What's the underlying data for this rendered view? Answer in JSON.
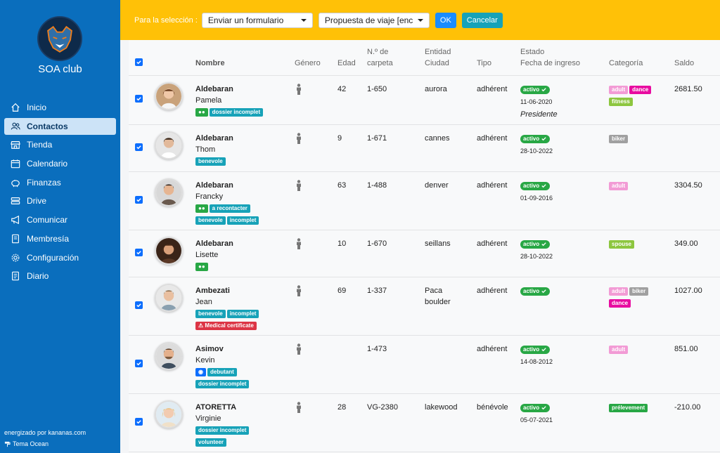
{
  "app": {
    "club_name": "SOA club",
    "footer_powered": "energizado por kananas.com",
    "footer_theme": "Tema Ocean"
  },
  "sidebar": {
    "items": [
      {
        "label": "Inicio",
        "icon": "home-icon"
      },
      {
        "label": "Contactos",
        "icon": "users-icon"
      },
      {
        "label": "Tienda",
        "icon": "store-icon"
      },
      {
        "label": "Calendario",
        "icon": "calendar-icon"
      },
      {
        "label": "Finanzas",
        "icon": "piggy-bank-icon"
      },
      {
        "label": "Drive",
        "icon": "drive-icon"
      },
      {
        "label": "Comunicar",
        "icon": "megaphone-icon"
      },
      {
        "label": "Membresía",
        "icon": "membership-icon"
      },
      {
        "label": "Configuración",
        "icon": "gear-icon"
      },
      {
        "label": "Diario",
        "icon": "journal-icon"
      }
    ]
  },
  "toolbar": {
    "selection_label": "Para la selección :",
    "action_value": "Enviar un formulario",
    "form_value": "Propuesta de viaje [encu",
    "ok_label": "OK",
    "cancel_label": "Cancelar"
  },
  "table": {
    "headers": {
      "name": "Nombre",
      "gender": "Género",
      "age": "Edad",
      "folder_1": "N.º de",
      "folder_2": "carpeta",
      "entity": "Entidad",
      "city": "Ciudad",
      "type": "Tipo",
      "status": "Estado",
      "join_date": "Fecha de ingreso",
      "category": "Categoría",
      "balance": "Saldo"
    },
    "rows": [
      {
        "last": "Aldebaran",
        "first": "Pamela",
        "age": "42",
        "folder": "1-650",
        "city": "aurora",
        "city2": "",
        "type": "adhérent",
        "status": "activo",
        "date": "11-06-2020",
        "role": "Presidente",
        "balance": "2681.50"
      },
      {
        "last": "Aldebaran",
        "first": "Thom",
        "age": "9",
        "folder": "1-671",
        "city": "cannes",
        "city2": "",
        "type": "adhérent",
        "status": "activo",
        "date": "28-10-2022",
        "role": "",
        "balance": ""
      },
      {
        "last": "Aldebaran",
        "first": "Francky",
        "age": "63",
        "folder": "1-488",
        "city": "denver",
        "city2": "",
        "type": "adhérent",
        "status": "activo",
        "date": "01-09-2016",
        "role": "",
        "balance": "3304.50"
      },
      {
        "last": "Aldebaran",
        "first": "Lisette",
        "age": "10",
        "folder": "1-670",
        "city": "seillans",
        "city2": "",
        "type": "adhérent",
        "status": "activo",
        "date": "28-10-2022",
        "role": "",
        "balance": "349.00"
      },
      {
        "last": "Ambezati",
        "first": "Jean",
        "age": "69",
        "folder": "1-337",
        "city": "Paca",
        "city2": "boulder",
        "type": "adhérent",
        "status": "activo",
        "date": "",
        "role": "",
        "balance": "1027.00"
      },
      {
        "last": "Asimov",
        "first": "Kevin",
        "age": "",
        "folder": "1-473",
        "city": "",
        "city2": "",
        "type": "adhérent",
        "status": "activo",
        "date": "14-08-2012",
        "role": "",
        "balance": "851.00"
      },
      {
        "last": "ATORETTA",
        "first": "Virginie",
        "age": "28",
        "folder": "VG-2380",
        "city": "lakewood",
        "city2": "",
        "type": "bénévole",
        "status": "activo",
        "date": "05-07-2021",
        "role": "",
        "balance": "-210.00"
      }
    ],
    "tags": {
      "dossier_incomplet": "dossier incomplet",
      "benevole": "benevole",
      "a_recontacter": "a recontacter",
      "incomplet": "incomplet",
      "medical": "Medical certificate",
      "debutant": "debutant",
      "volunteer": "volunteer"
    },
    "categories": {
      "adult": "adult",
      "dance": "dance",
      "fitness": "fitness",
      "biker": "biker",
      "spouse": "spouse",
      "prelevement": "prélevement"
    }
  },
  "colors": {
    "sidebar": "#0a6ebd",
    "topbar": "#ffc107",
    "active_status": "#28a745"
  }
}
